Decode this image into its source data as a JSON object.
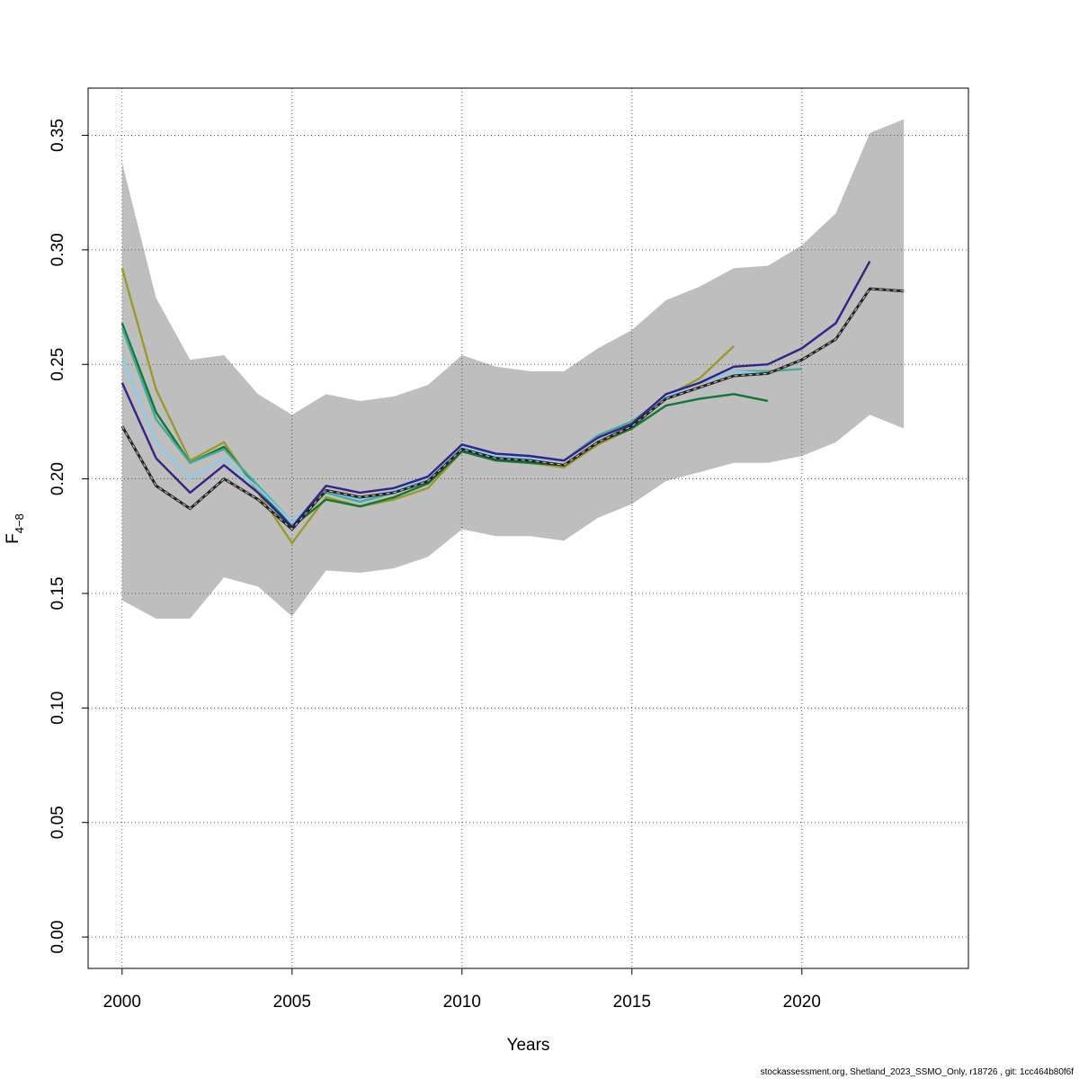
{
  "chart_data": {
    "type": "line",
    "title": "",
    "xlabel": "Years",
    "ylabel_main": "F",
    "ylabel_sub": "4−8",
    "xlim": [
      1999.0,
      2024.9
    ],
    "ylim": [
      -0.0137,
      0.3706
    ],
    "xticks": [
      2000,
      2005,
      2010,
      2015,
      2020
    ],
    "yticks": [
      0.0,
      0.05,
      0.1,
      0.15,
      0.2,
      0.25,
      0.3,
      0.35
    ],
    "ytick_labels": [
      "0.00",
      "0.05",
      "0.10",
      "0.15",
      "0.20",
      "0.25",
      "0.30",
      "0.35"
    ],
    "grid": true,
    "band": {
      "color": "#bebebe",
      "x": [
        2000,
        2001,
        2002,
        2003,
        2004,
        2005,
        2006,
        2007,
        2008,
        2009,
        2010,
        2011,
        2012,
        2013,
        2014,
        2015,
        2016,
        2017,
        2018,
        2019,
        2020,
        2021,
        2022,
        2023
      ],
      "upper": [
        0.338,
        0.279,
        0.252,
        0.254,
        0.237,
        0.228,
        0.237,
        0.234,
        0.236,
        0.241,
        0.254,
        0.249,
        0.247,
        0.247,
        0.257,
        0.265,
        0.278,
        0.284,
        0.292,
        0.293,
        0.302,
        0.316,
        0.351,
        0.357
      ],
      "lower": [
        0.147,
        0.139,
        0.139,
        0.157,
        0.153,
        0.14,
        0.16,
        0.159,
        0.161,
        0.166,
        0.178,
        0.175,
        0.175,
        0.173,
        0.183,
        0.189,
        0.199,
        0.203,
        0.207,
        0.207,
        0.21,
        0.216,
        0.228,
        0.222
      ]
    },
    "series": [
      {
        "color": "#9a9a2c",
        "dashed": false,
        "x": [
          2000,
          2001,
          2002,
          2003,
          2004,
          2005,
          2006,
          2007,
          2008,
          2009,
          2010,
          2011,
          2012,
          2013,
          2014,
          2015,
          2016,
          2017,
          2018
        ],
        "values": [
          0.292,
          0.239,
          0.208,
          0.216,
          0.194,
          0.172,
          0.192,
          0.188,
          0.191,
          0.196,
          0.212,
          0.208,
          0.207,
          0.205,
          0.215,
          0.222,
          0.236,
          0.244,
          0.258
        ]
      },
      {
        "color": "#117733",
        "dashed": false,
        "x": [
          2000,
          2001,
          2002,
          2003,
          2004,
          2005,
          2006,
          2007,
          2008,
          2009,
          2010,
          2011,
          2012,
          2013,
          2014,
          2015,
          2016,
          2017,
          2018,
          2019
        ],
        "values": [
          0.268,
          0.229,
          0.207,
          0.214,
          0.196,
          0.179,
          0.191,
          0.188,
          0.192,
          0.198,
          0.212,
          0.208,
          0.207,
          0.206,
          0.216,
          0.222,
          0.232,
          0.235,
          0.237,
          0.234
        ]
      },
      {
        "color": "#44aa99",
        "dashed": false,
        "x": [
          2000,
          2001,
          2002,
          2003,
          2004,
          2005,
          2006,
          2007,
          2008,
          2009,
          2010,
          2011,
          2012,
          2013,
          2014,
          2015,
          2016,
          2017,
          2018,
          2019,
          2020
        ],
        "values": [
          0.266,
          0.226,
          0.207,
          0.213,
          0.197,
          0.181,
          0.194,
          0.19,
          0.194,
          0.199,
          0.214,
          0.21,
          0.209,
          0.208,
          0.219,
          0.225,
          0.236,
          0.242,
          0.247,
          0.247,
          0.248
        ]
      },
      {
        "color": "#88ccee",
        "dashed": false,
        "x": [
          2000,
          2001,
          2002,
          2003,
          2004,
          2005,
          2006,
          2007,
          2008,
          2009,
          2010,
          2011,
          2012,
          2013,
          2014,
          2015,
          2016,
          2017,
          2018,
          2019,
          2020,
          2021
        ],
        "values": [
          0.253,
          0.216,
          0.2,
          0.209,
          0.196,
          0.181,
          0.195,
          0.191,
          0.195,
          0.2,
          0.214,
          0.21,
          0.209,
          0.208,
          0.218,
          0.224,
          0.236,
          0.242,
          0.247,
          0.246,
          0.252,
          0.261
        ]
      },
      {
        "color": "#332288",
        "dashed": false,
        "x": [
          2000,
          2001,
          2002,
          2003,
          2004,
          2005,
          2006,
          2007,
          2008,
          2009,
          2010,
          2011,
          2012,
          2013,
          2014,
          2015,
          2016,
          2017,
          2018,
          2019,
          2020,
          2021,
          2022
        ],
        "values": [
          0.242,
          0.209,
          0.194,
          0.206,
          0.194,
          0.179,
          0.197,
          0.194,
          0.196,
          0.201,
          0.215,
          0.211,
          0.21,
          0.208,
          0.218,
          0.224,
          0.237,
          0.242,
          0.249,
          0.25,
          0.257,
          0.268,
          0.295
        ]
      },
      {
        "color": "#222222",
        "dashed": true,
        "x": [
          2000,
          2001,
          2002,
          2003,
          2004,
          2005,
          2006,
          2007,
          2008,
          2009,
          2010,
          2011,
          2012,
          2013,
          2014,
          2015,
          2016,
          2017,
          2018,
          2019,
          2020,
          2021,
          2022,
          2023
        ],
        "values": [
          0.223,
          0.197,
          0.187,
          0.2,
          0.191,
          0.178,
          0.195,
          0.192,
          0.194,
          0.199,
          0.213,
          0.209,
          0.208,
          0.206,
          0.216,
          0.223,
          0.235,
          0.24,
          0.245,
          0.246,
          0.252,
          0.261,
          0.283,
          0.282
        ]
      }
    ]
  },
  "footer": "stockassessment.org, Shetland_2023_SSMO_Only, r18726 , git: 1cc464b80f6f"
}
